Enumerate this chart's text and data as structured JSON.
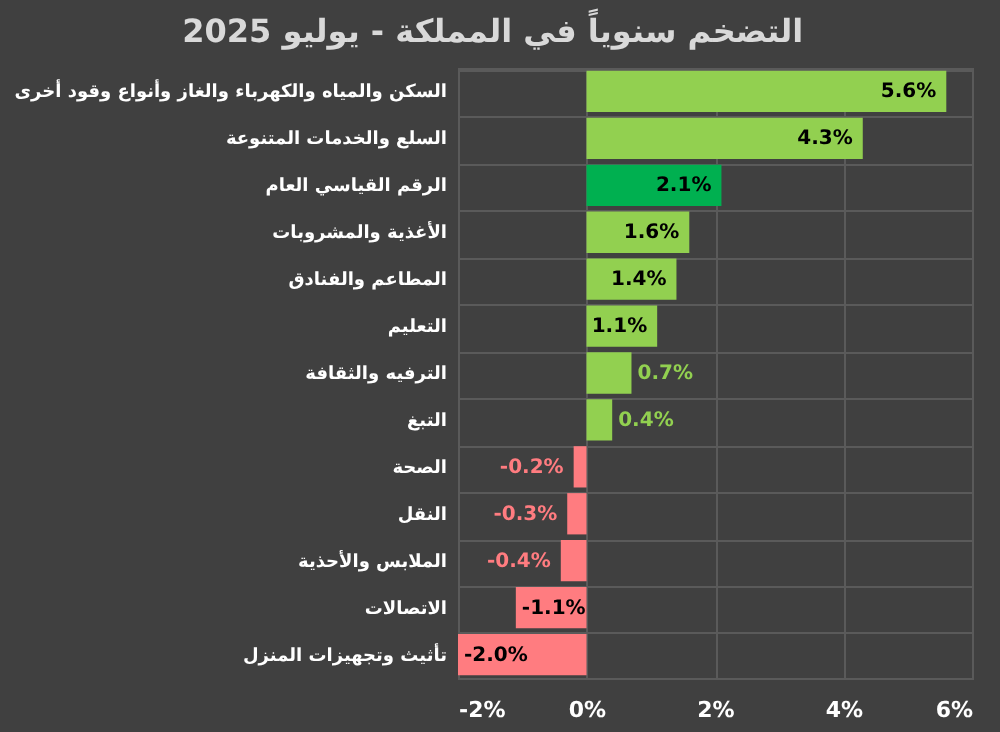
{
  "chart_data": {
    "type": "bar",
    "orientation": "horizontal",
    "title": "التضخم سنوياً في المملكة - يوليو 2025",
    "categories": [
      "السكن والمياه والكهرباء والغاز وأنواع وقود أخرى",
      "السلع والخدمات المتنوعة",
      "الرقم القياسي العام",
      "الأغذية والمشروبات",
      "المطاعم والفنادق",
      "التعليم",
      "الترفيه والثقافة",
      "التبغ",
      "الصحة",
      "النقل",
      "الملابس والأحذية",
      "الاتصالات",
      "تأثيث وتجهيزات المنزل"
    ],
    "values": [
      5.6,
      4.3,
      2.1,
      1.6,
      1.4,
      1.1,
      0.7,
      0.4,
      -0.2,
      -0.3,
      -0.4,
      -1.1,
      -2.0
    ],
    "colors": [
      "#92d050",
      "#92d050",
      "#00b050",
      "#92d050",
      "#92d050",
      "#92d050",
      "#92d050",
      "#92d050",
      "#ff7c80",
      "#ff7c80",
      "#ff7c80",
      "#ff7c80",
      "#ff7c80"
    ],
    "value_labels": [
      "5.6%",
      "4.3%",
      "2.1%",
      "1.6%",
      "1.4%",
      "1.1%",
      "0.7%",
      "0.4%",
      "-0.2%",
      "-0.3%",
      "-0.4%",
      "-1.1%",
      "-2.0%"
    ],
    "xlim": [
      -2,
      6
    ],
    "xticks": [
      {
        "value": -2,
        "label": "-2%"
      },
      {
        "value": 0,
        "label": "0%"
      },
      {
        "value": 2,
        "label": "2%"
      },
      {
        "value": 4,
        "label": "4%"
      },
      {
        "value": 6,
        "label": "6%"
      }
    ],
    "grid": true
  }
}
